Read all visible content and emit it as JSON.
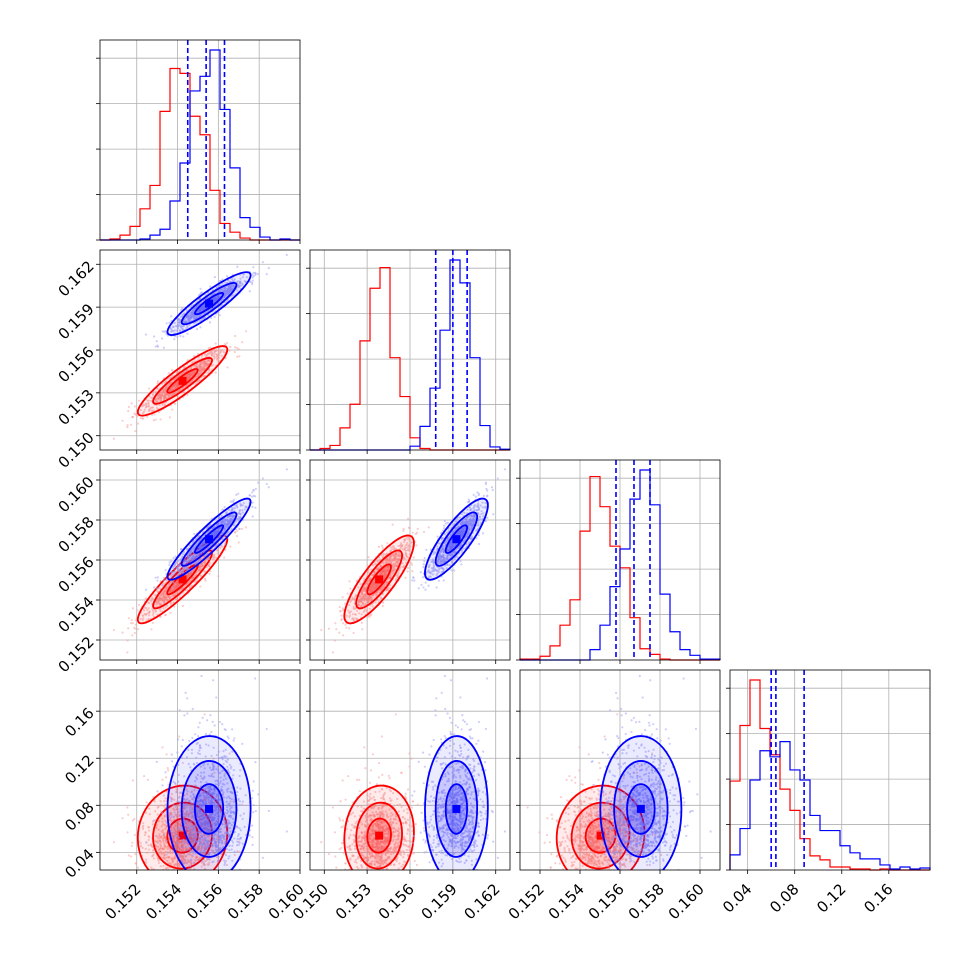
{
  "chart_data": {
    "type": "corner-plot",
    "title": "",
    "parameters": [
      "",
      "",
      "",
      ""
    ],
    "colors": {
      "red": "#ff0000",
      "blue": "#0000ff"
    },
    "series": [
      {
        "color": "red",
        "means": [
          0.1542,
          0.1538,
          0.155,
          0.05
        ],
        "stds": [
          0.001,
          0.0011,
          0.001,
          0.018
        ]
      },
      {
        "color": "blue",
        "means": [
          0.1555,
          0.1592,
          0.157,
          0.072
        ],
        "stds": [
          0.0009,
          0.001,
          0.0009,
          0.02
        ]
      }
    ],
    "quantile_lines": {
      "color": "blue",
      "dim0": [
        0.1545,
        0.1554,
        0.1563
      ],
      "dim1": [
        0.1578,
        0.159,
        0.16
      ],
      "dim2": [
        0.1558,
        0.1567,
        0.1575
      ],
      "dim3": [
        0.06,
        0.064,
        0.088
      ]
    },
    "ranges": [
      [
        0.1502,
        0.16
      ],
      [
        0.149,
        0.163
      ],
      [
        0.151,
        0.161
      ],
      [
        0.025,
        0.195
      ]
    ],
    "tick_labels": {
      "dim0": [
        "0.152",
        "0.154",
        "0.156",
        "0.158",
        "0.160"
      ],
      "dim1": [
        "0.150",
        "0.153",
        "0.156",
        "0.159",
        "0.162"
      ],
      "dim2": [
        "0.152",
        "0.154",
        "0.156",
        "0.158",
        "0.160"
      ],
      "dim3": [
        "0.04",
        "0.08",
        "0.12",
        "0.16"
      ]
    },
    "tick_values": {
      "dim0": [
        0.152,
        0.154,
        0.156,
        0.158,
        0.16
      ],
      "dim1": [
        0.15,
        0.153,
        0.156,
        0.159,
        0.162
      ],
      "dim2": [
        0.152,
        0.154,
        0.156,
        0.158,
        0.16
      ],
      "dim3": [
        0.04,
        0.08,
        0.12,
        0.16
      ]
    },
    "grid": true
  }
}
